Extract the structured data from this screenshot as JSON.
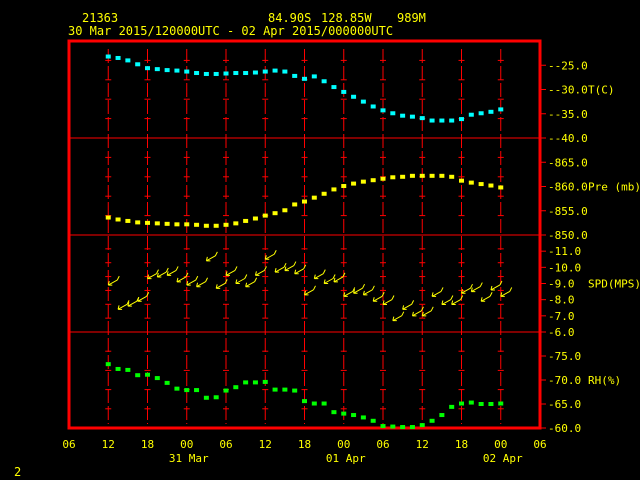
{
  "header": {
    "station": "21363",
    "lat": "84.90S",
    "lon": "128.85W",
    "elev": "989M",
    "range": "30 Mar 2015/120000UTC - 02 Apr 2015/000000UTC"
  },
  "figure_number": "2",
  "colors": {
    "frame": "#ff0000",
    "grid": "#ff0000",
    "text": "#ffff00",
    "temperature": "#00ffff",
    "pressure": "#ffff00",
    "wind": "#ffff00",
    "humidity": "#00ff00"
  },
  "chart_data": {
    "type": "scatter",
    "x_axis": {
      "hour_labels": [
        "06",
        "12",
        "18",
        "00",
        "06",
        "12",
        "18",
        "00",
        "06",
        "12",
        "18",
        "00",
        "06"
      ],
      "date_labels": [
        "31 Mar",
        "01 Apr",
        "02 Apr"
      ],
      "hour_range": [
        0,
        72
      ]
    },
    "panels": [
      {
        "key": "temp",
        "label": "T(C)",
        "ticks": [
          "-25.0",
          "-30.0",
          "-35.0",
          "-40.0"
        ],
        "ylim": [
          -40,
          -20
        ],
        "x_hours": [
          6,
          7.5,
          9,
          10.5,
          12,
          13.5,
          15,
          16.5,
          18,
          19.5,
          21,
          22.5,
          24,
          25.5,
          27,
          28.5,
          30,
          31.5,
          33,
          34.5,
          36,
          37.5,
          39,
          40.5,
          42,
          43.5,
          45,
          46.5,
          48,
          49.5,
          51,
          52.5,
          54,
          55.5,
          57,
          58.5,
          60,
          61.5,
          63,
          64.5,
          66
        ],
        "values": [
          -23.2,
          -23.5,
          -24.0,
          -24.8,
          -25.6,
          -25.8,
          -26.0,
          -26.1,
          -26.3,
          -26.6,
          -26.8,
          -26.8,
          -26.7,
          -26.6,
          -26.6,
          -26.5,
          -26.3,
          -26.1,
          -26.3,
          -27.2,
          -27.8,
          -27.3,
          -28.3,
          -29.5,
          -30.5,
          -31.5,
          -32.5,
          -33.5,
          -34.3,
          -34.9,
          -35.4,
          -35.6,
          -35.9,
          -36.4,
          -36.4,
          -36.4,
          -36.1,
          -35.2,
          -34.9,
          -34.6,
          -34.1
        ]
      },
      {
        "key": "pres",
        "label": "Pre (mb)",
        "ticks": [
          "865.0",
          "860.0",
          "855.0",
          "850.0"
        ],
        "ylim": [
          850,
          870
        ],
        "x_hours": [
          6,
          7.5,
          9,
          10.5,
          12,
          13.5,
          15,
          16.5,
          18,
          19.5,
          21,
          22.5,
          24,
          25.5,
          27,
          28.5,
          30,
          31.5,
          33,
          34.5,
          36,
          37.5,
          39,
          40.5,
          42,
          43.5,
          45,
          46.5,
          48,
          49.5,
          51,
          52.5,
          54,
          55.5,
          57,
          58.5,
          60,
          61.5,
          63,
          64.5,
          66
        ],
        "values": [
          853.6,
          853.2,
          852.9,
          852.6,
          852.5,
          852.4,
          852.3,
          852.2,
          852.2,
          852.1,
          851.9,
          851.9,
          852.1,
          852.4,
          852.9,
          853.4,
          854.0,
          854.5,
          855.1,
          856.3,
          856.9,
          857.7,
          858.5,
          859.4,
          860.1,
          860.6,
          861.0,
          861.3,
          861.6,
          861.9,
          862.0,
          862.2,
          862.2,
          862.2,
          862.2,
          862.0,
          861.2,
          860.8,
          860.5,
          860.2,
          859.8
        ]
      },
      {
        "key": "spd",
        "label": "SPD(MPS)",
        "ticks": [
          "11.0",
          "10.0",
          "9.0",
          "8.0",
          "7.0",
          "6.0"
        ],
        "ylim": [
          6,
          12
        ],
        "x_hours": [
          6,
          7.5,
          9,
          10.5,
          12,
          13.5,
          15,
          16.5,
          18,
          19.5,
          21,
          22.5,
          24,
          25.5,
          27,
          28.5,
          30,
          31.5,
          33,
          34.5,
          36,
          37.5,
          39,
          40.5,
          42,
          43.5,
          45,
          46.5,
          48,
          49.5,
          51,
          52.5,
          54,
          55.5,
          57,
          58.5,
          60,
          61.5,
          63,
          64.5,
          66
        ],
        "values": [
          8.9,
          7.4,
          7.6,
          7.9,
          9.3,
          9.4,
          9.5,
          9.1,
          8.9,
          8.8,
          10.4,
          8.7,
          9.5,
          9.0,
          8.8,
          9.5,
          10.5,
          9.7,
          9.8,
          9.6,
          8.3,
          9.3,
          9.0,
          9.1,
          8.2,
          8.4,
          8.3,
          7.9,
          7.7,
          6.7,
          7.4,
          7.0,
          7.0,
          8.2,
          7.7,
          7.7,
          8.4,
          8.5,
          7.9,
          8.6,
          8.2
        ]
      },
      {
        "key": "rh",
        "label": "RH(%)",
        "ticks": [
          "75.0",
          "70.0",
          "65.0",
          "60.0"
        ],
        "ylim": [
          60,
          80
        ],
        "x_hours": [
          6,
          7.5,
          9,
          10.5,
          12,
          13.5,
          15,
          16.5,
          18,
          19.5,
          21,
          22.5,
          24,
          25.5,
          27,
          28.5,
          30,
          31.5,
          33,
          34.5,
          36,
          37.5,
          39,
          40.5,
          42,
          43.5,
          45,
          46.5,
          48,
          49.5,
          51,
          52.5,
          54,
          55.5,
          57,
          58.5,
          60,
          61.5,
          63,
          64.5,
          66
        ],
        "values": [
          73.3,
          72.3,
          72.1,
          71.0,
          71.1,
          70.4,
          69.4,
          68.2,
          67.9,
          67.9,
          66.3,
          66.4,
          67.8,
          68.5,
          69.5,
          69.5,
          69.6,
          68.0,
          68.0,
          67.8,
          65.6,
          65.1,
          65.1,
          63.3,
          63.0,
          62.7,
          62.2,
          61.5,
          60.4,
          60.3,
          60.2,
          60.2,
          60.6,
          61.5,
          62.7,
          64.4,
          65.1,
          65.3,
          65.0,
          65.0,
          65.1
        ]
      }
    ]
  }
}
